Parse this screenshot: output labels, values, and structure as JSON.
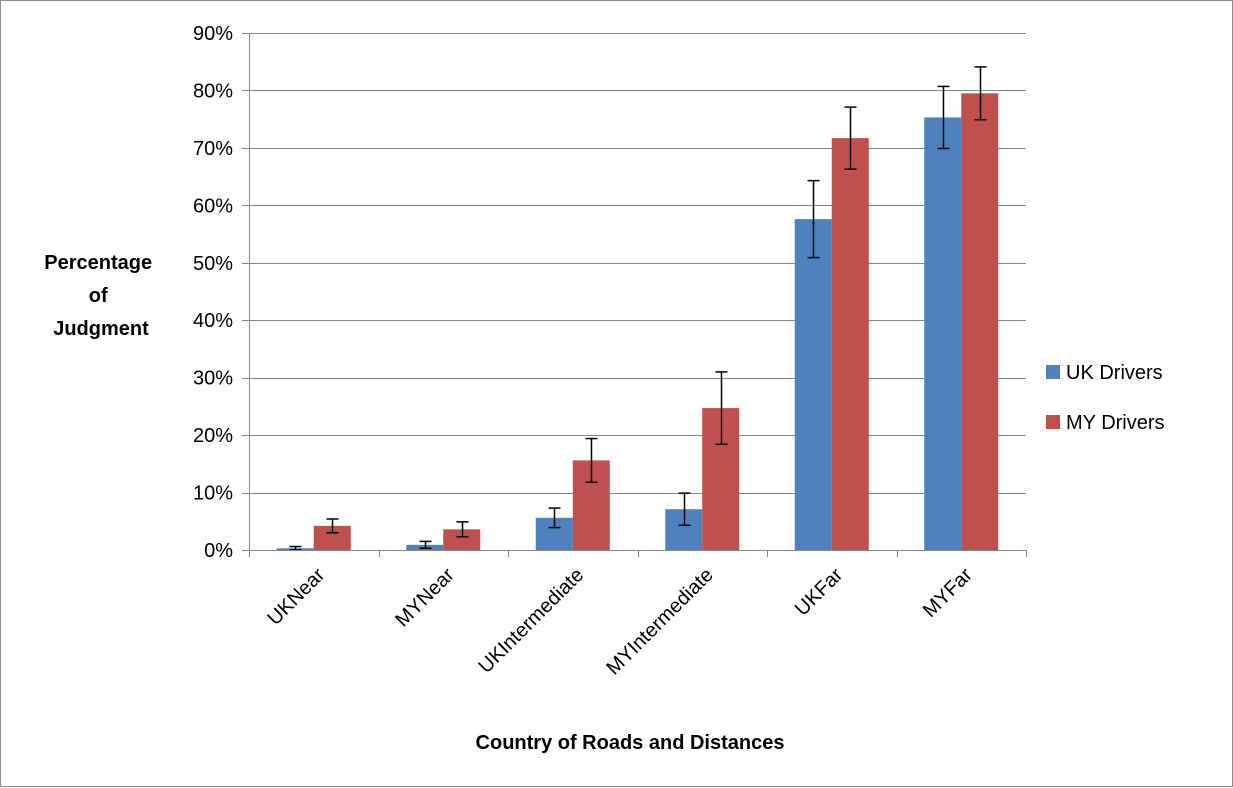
{
  "chart_data": {
    "type": "bar",
    "title": "",
    "xlabel": "Country of Roads and Distances",
    "ylabel_lines": [
      "Percentage",
      "of",
      "Judgment"
    ],
    "ylim": [
      0,
      0.9
    ],
    "y_ticks": [
      0,
      0.1,
      0.2,
      0.3,
      0.4,
      0.5,
      0.6,
      0.7,
      0.8,
      0.9
    ],
    "y_tick_labels": [
      "0%",
      "10%",
      "20%",
      "30%",
      "40%",
      "50%",
      "60%",
      "70%",
      "80%",
      "90%"
    ],
    "categories": [
      "UKNear",
      "MYNear",
      "UKIntermediate",
      "MYIntermediate",
      "UKFar",
      "MYFar"
    ],
    "grid": true,
    "legend_position": "right",
    "series": [
      {
        "name": "UK Drivers",
        "color": "#4f81bd",
        "values": [
          0.003,
          0.009,
          0.056,
          0.071,
          0.576,
          0.753
        ],
        "error": [
          0.003,
          0.006,
          0.017,
          0.028,
          0.067,
          0.054
        ]
      },
      {
        "name": "MY Drivers",
        "color": "#c0504d",
        "values": [
          0.042,
          0.036,
          0.156,
          0.247,
          0.717,
          0.795
        ],
        "error": [
          0.012,
          0.013,
          0.038,
          0.063,
          0.054,
          0.046
        ]
      }
    ]
  }
}
